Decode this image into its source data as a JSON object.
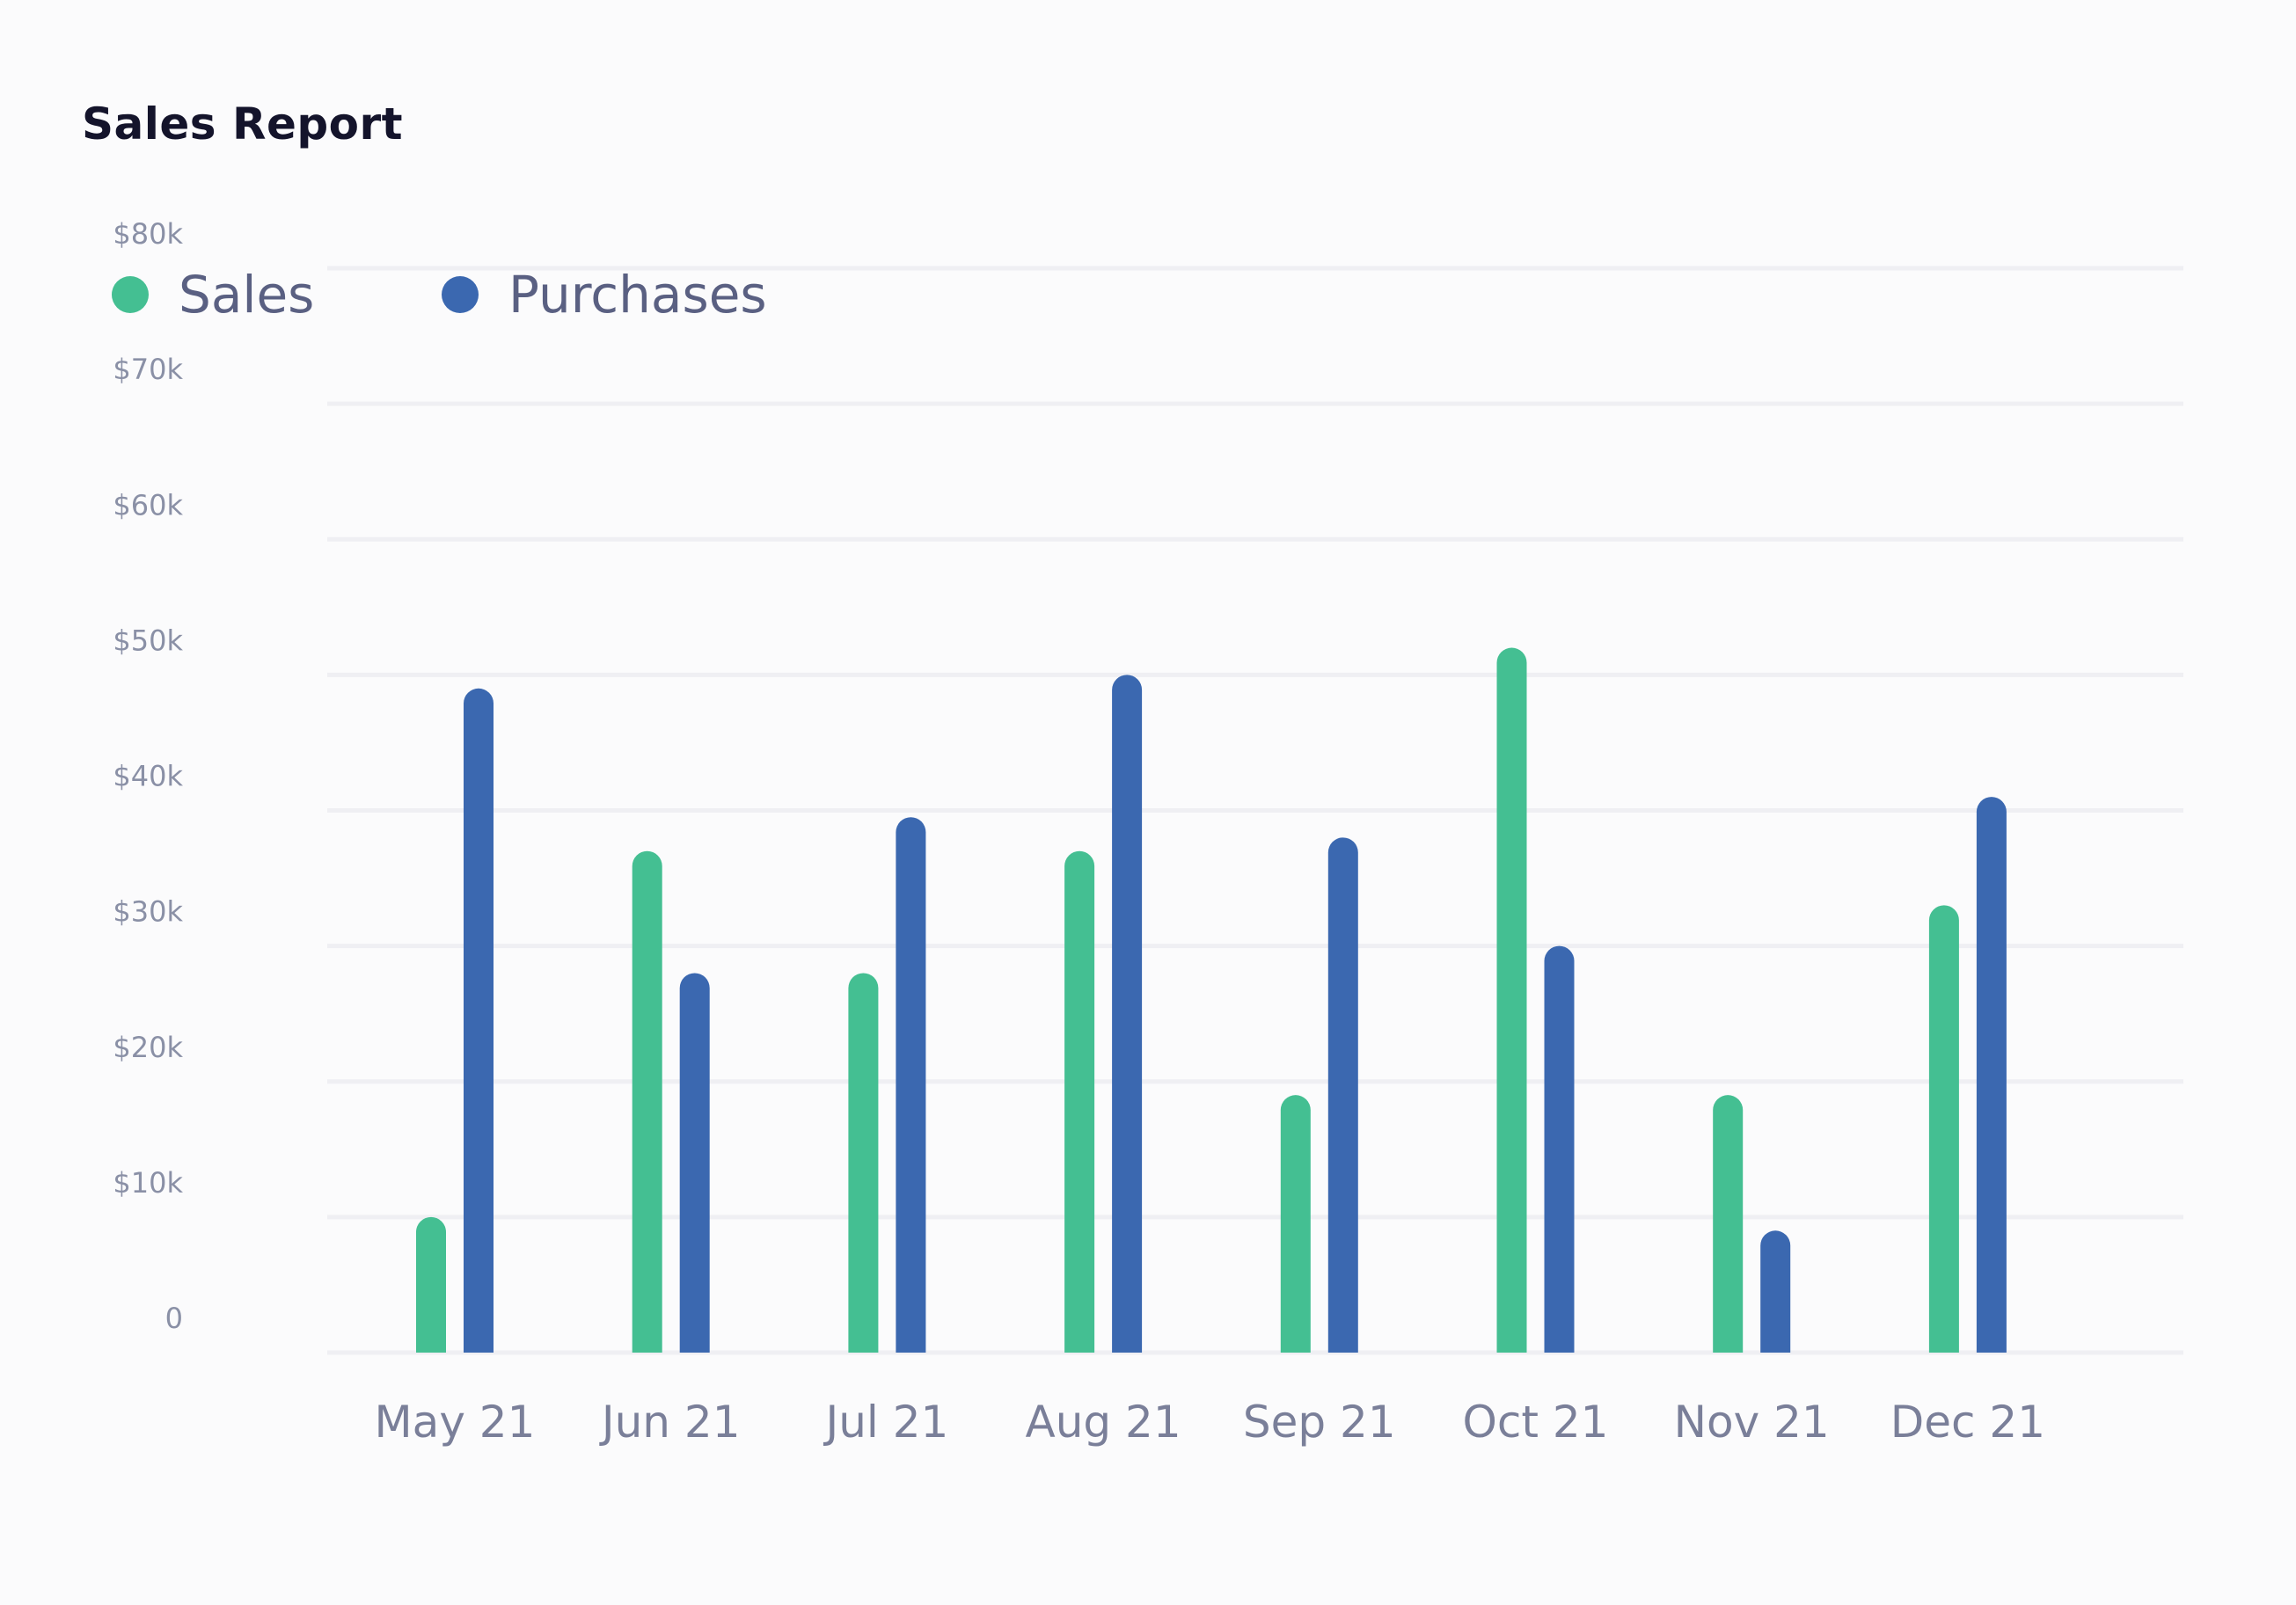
{
  "page": {
    "title": "Sales Report"
  },
  "colors": {
    "sales": "#44bf92",
    "purchases": "#3b68b0",
    "grid": "#efeff3"
  },
  "chart_data": {
    "type": "bar",
    "title": "Sales Report",
    "xlabel": "",
    "ylabel": "",
    "categories": [
      "May 21",
      "Jun 21",
      "Jul 21",
      "Aug 21",
      "Sep 21",
      "Oct 21",
      "Nov 21",
      "Dec 21"
    ],
    "series": [
      {
        "name": "Sales",
        "color": "#44bf92",
        "values": [
          10,
          37,
          28,
          37,
          19,
          52,
          19,
          33
        ]
      },
      {
        "name": "Purchases",
        "color": "#3b68b0",
        "values": [
          49,
          28,
          39.5,
          50,
          38,
          30,
          9,
          41
        ]
      }
    ],
    "ylim": [
      0,
      80
    ],
    "yticks": [
      0,
      10,
      20,
      30,
      40,
      50,
      60,
      70,
      80
    ],
    "ytick_labels": [
      "0",
      "$10k",
      "$20k",
      "$30k",
      "$40k",
      "$50k",
      "$60k",
      "$70k",
      "$80k"
    ],
    "grid": true,
    "legend": "top-left"
  }
}
